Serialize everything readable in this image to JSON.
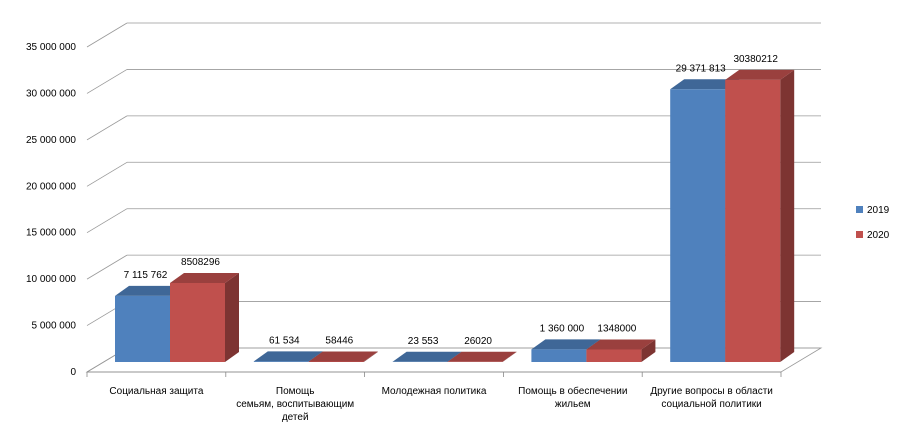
{
  "chart_data": {
    "type": "bar",
    "title": "",
    "xlabel": "",
    "ylabel": "",
    "ylim": [
      0,
      35000000
    ],
    "yticks": [
      0,
      5000000,
      10000000,
      15000000,
      20000000,
      25000000,
      30000000,
      35000000
    ],
    "ytick_labels": [
      "0",
      "5 000 000",
      "10 000 000",
      "15 000 000",
      "20 000 000",
      "25 000 000",
      "30 000 000",
      "35 000 000"
    ],
    "grid": true,
    "legend_position": "right",
    "categories": [
      [
        "Социальная защита"
      ],
      [
        "Помощь",
        "семьям, воспитывающим",
        "детей"
      ],
      [
        "Молодежная политика"
      ],
      [
        "Помощь в обеспечении",
        "жильем"
      ],
      [
        "Другие вопросы в области",
        "социальной политики"
      ]
    ],
    "series": [
      {
        "name": "2019",
        "color": "#4F81BD",
        "values": [
          7115762,
          61534,
          23553,
          1360000,
          29371813
        ],
        "labels": [
          "7 115 762",
          "61 534",
          "23 553",
          "1 360 000",
          "29 371 813"
        ]
      },
      {
        "name": "2020",
        "color": "#C0504D",
        "values": [
          8508296,
          58446,
          26020,
          1348000,
          30380212
        ],
        "labels": [
          "8508296",
          "58446",
          "26020",
          "1348000",
          "30380212"
        ]
      }
    ]
  }
}
